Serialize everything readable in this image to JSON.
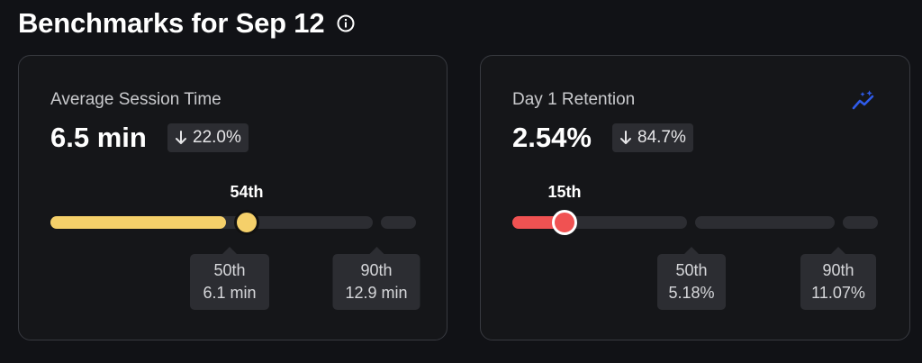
{
  "header": {
    "title": "Benchmarks for Sep 12",
    "info_icon": "info-icon"
  },
  "cards": [
    {
      "label": "Average Session Time",
      "value": "6.5 min",
      "delta": "22.0%",
      "delta_direction": "down",
      "percentile_label": "54th",
      "percentile": 54,
      "fill_color": "#f5d06a",
      "ticks": [
        {
          "label": "50th",
          "value": "6.1 min"
        },
        {
          "label": "90th",
          "value": "12.9 min"
        }
      ]
    },
    {
      "label": "Day 1 Retention",
      "value": "2.54%",
      "delta": "84.7%",
      "delta_direction": "down",
      "percentile_label": "15th",
      "percentile": 15,
      "fill_color": "#f05252",
      "trend_icon": "trend-sparkle-icon",
      "trend_icon_color": "#2f5bea",
      "ticks": [
        {
          "label": "50th",
          "value": "5.18%"
        },
        {
          "label": "90th",
          "value": "11.07%"
        }
      ]
    }
  ]
}
